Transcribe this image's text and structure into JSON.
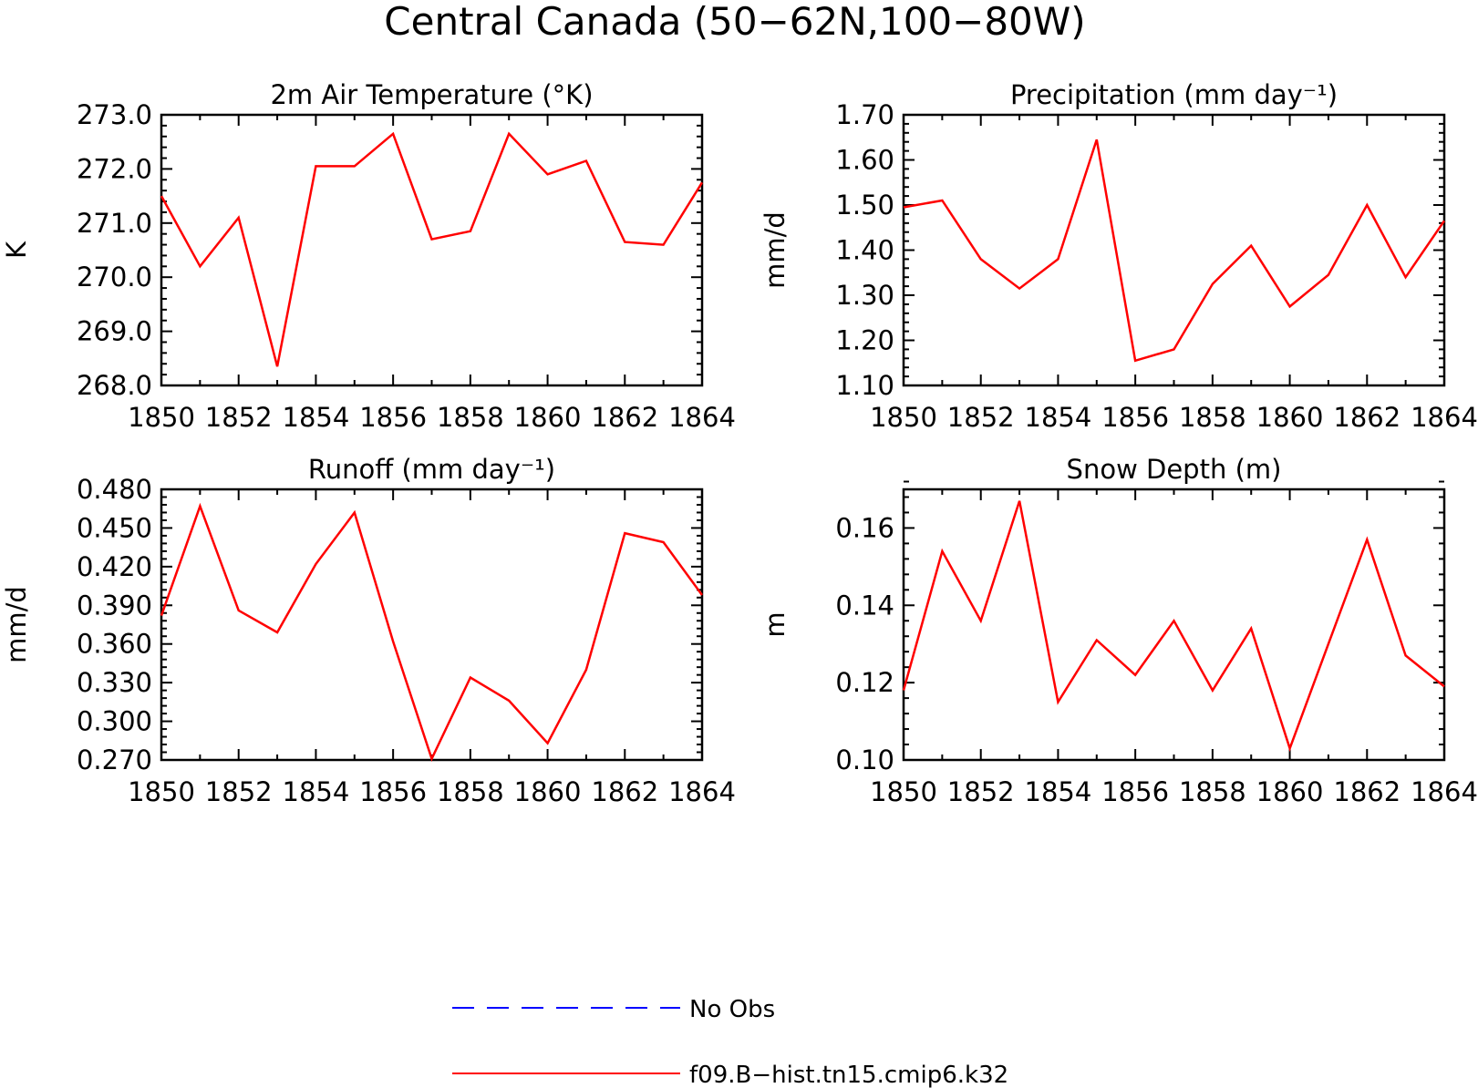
{
  "figure": {
    "title": "Central Canada (50−62N,100−80W)"
  },
  "legend": {
    "placement": "bottom-center",
    "entries": [
      {
        "label": "No Obs",
        "color": "#0000ff",
        "style": "dashed"
      },
      {
        "label": "f09.B−hist.tn15.cmip6.k32",
        "color": "#ff0000",
        "style": "solid"
      }
    ]
  },
  "chart_data": [
    {
      "type": "line",
      "title": "2m Air Temperature (°K)",
      "ylabel": "K",
      "xlabel": "",
      "xlim": [
        1850,
        1864
      ],
      "ylim": [
        268.0,
        273.0
      ],
      "yticks": [
        "268.0",
        "269.0",
        "270.0",
        "271.0",
        "272.0",
        "273.0"
      ],
      "xticks": [
        "1850",
        "1852",
        "1854",
        "1856",
        "1858",
        "1860",
        "1862",
        "1864"
      ],
      "x": [
        1850,
        1851,
        1852,
        1853,
        1854,
        1855,
        1856,
        1857,
        1858,
        1859,
        1860,
        1861,
        1862,
        1863,
        1864
      ],
      "series": [
        {
          "name": "f09.B−hist.tn15.cmip6.k32",
          "color": "#ff0000",
          "values": [
            271.5,
            270.2,
            271.1,
            268.35,
            272.05,
            272.05,
            272.65,
            270.7,
            270.85,
            272.65,
            271.9,
            272.15,
            270.65,
            270.6,
            271.75
          ]
        }
      ]
    },
    {
      "type": "line",
      "title": "Precipitation (mm day⁻¹)",
      "ylabel": "mm/d",
      "xlabel": "",
      "xlim": [
        1850,
        1864
      ],
      "ylim": [
        1.1,
        1.7
      ],
      "yticks": [
        "1.10",
        "1.20",
        "1.30",
        "1.40",
        "1.50",
        "1.60",
        "1.70"
      ],
      "xticks": [
        "1850",
        "1852",
        "1854",
        "1856",
        "1858",
        "1860",
        "1862",
        "1864"
      ],
      "x": [
        1850,
        1851,
        1852,
        1853,
        1854,
        1855,
        1856,
        1857,
        1858,
        1859,
        1860,
        1861,
        1862,
        1863,
        1864
      ],
      "series": [
        {
          "name": "f09.B−hist.tn15.cmip6.k32",
          "color": "#ff0000",
          "values": [
            1.495,
            1.51,
            1.38,
            1.315,
            1.38,
            1.645,
            1.155,
            1.18,
            1.325,
            1.41,
            1.275,
            1.345,
            1.5,
            1.34,
            1.465
          ]
        }
      ]
    },
    {
      "type": "line",
      "title": "Runoff (mm day⁻¹)",
      "ylabel": "mm/d",
      "xlabel": "",
      "xlim": [
        1850,
        1864
      ],
      "ylim": [
        0.27,
        0.48
      ],
      "yticks": [
        "0.270",
        "0.300",
        "0.330",
        "0.360",
        "0.390",
        "0.420",
        "0.450",
        "0.480"
      ],
      "xticks": [
        "1850",
        "1852",
        "1854",
        "1856",
        "1858",
        "1860",
        "1862",
        "1864"
      ],
      "x": [
        1850,
        1851,
        1852,
        1853,
        1854,
        1855,
        1856,
        1857,
        1858,
        1859,
        1860,
        1861,
        1862,
        1863,
        1864
      ],
      "series": [
        {
          "name": "f09.B−hist.tn15.cmip6.k32",
          "color": "#ff0000",
          "values": [
            0.382,
            0.467,
            0.386,
            0.369,
            0.422,
            0.462,
            0.362,
            0.271,
            0.334,
            0.316,
            0.283,
            0.34,
            0.446,
            0.439,
            0.398
          ]
        }
      ]
    },
    {
      "type": "line",
      "title": "Snow Depth (m)",
      "ylabel": "m",
      "xlabel": "",
      "xlim": [
        1850,
        1864
      ],
      "ylim": [
        0.1,
        0.17
      ],
      "yticks": [
        "0.10",
        "0.12",
        "0.14",
        "0.16"
      ],
      "xticks": [
        "1850",
        "1852",
        "1854",
        "1856",
        "1858",
        "1860",
        "1862",
        "1864"
      ],
      "x": [
        1850,
        1851,
        1852,
        1853,
        1854,
        1855,
        1856,
        1857,
        1858,
        1859,
        1860,
        1861,
        1862,
        1863,
        1864
      ],
      "series": [
        {
          "name": "f09.B−hist.tn15.cmip6.k32",
          "color": "#ff0000",
          "values": [
            0.118,
            0.154,
            0.136,
            0.167,
            0.115,
            0.131,
            0.122,
            0.136,
            0.118,
            0.134,
            0.103,
            0.13,
            0.157,
            0.127,
            0.119
          ]
        }
      ]
    }
  ]
}
